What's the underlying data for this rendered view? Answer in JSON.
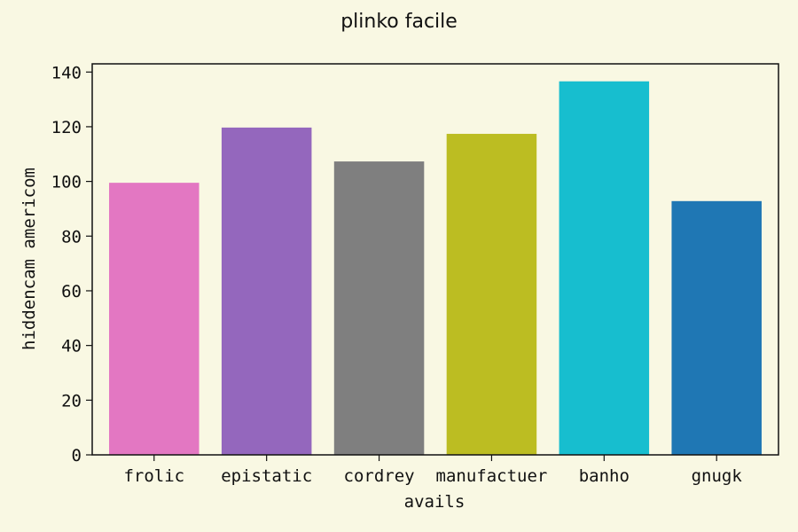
{
  "chart_data": {
    "type": "bar",
    "title": "plinko facile",
    "xlabel": "avails",
    "ylabel": "hiddencam americom",
    "categories": [
      "frolic",
      "epistatic",
      "cordrey",
      "manufactuer",
      "banho",
      "gnugk"
    ],
    "values": [
      99.5,
      119.7,
      107.3,
      117.4,
      136.6,
      92.8
    ],
    "bar_colors": [
      "#e377c2",
      "#9467bd",
      "#7f7f7f",
      "#bcbd22",
      "#17becf",
      "#1f77b4"
    ],
    "ylim": [
      0,
      143
    ],
    "yticks": [
      0,
      20,
      40,
      60,
      80,
      100,
      120,
      140
    ],
    "grid": false,
    "background_color": "#f9f8e3"
  }
}
